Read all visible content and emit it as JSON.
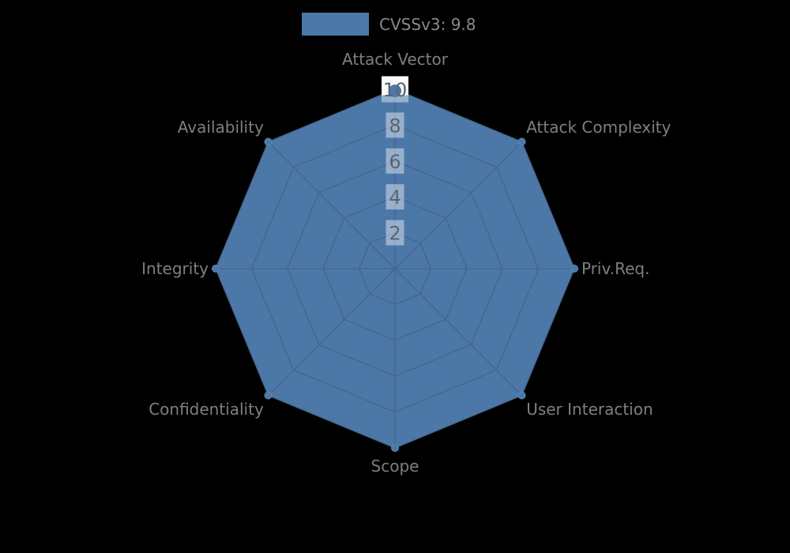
{
  "legend": {
    "label": "CVSSv3: 9.8",
    "position": "top-center"
  },
  "chart_data": {
    "type": "radar",
    "title": "",
    "categories": [
      "Attack Vector",
      "Attack Complexity",
      "Priv.Req.",
      "User Interaction",
      "Scope",
      "Confidentiality",
      "Integrity",
      "Availability"
    ],
    "series": [
      {
        "name": "CVSSv3: 9.8",
        "values": [
          10,
          10,
          10,
          10,
          10,
          10,
          10,
          10
        ]
      }
    ],
    "radial_ticks": [
      2,
      4,
      6,
      8,
      10
    ],
    "rmin": 0,
    "rmax": 10,
    "grid": true,
    "legend_position": "top-center",
    "colors": {
      "fill": "#4c78a8",
      "grid_line": "#47648c",
      "marker_edge": "#5d87b5",
      "background": "#000000",
      "axis_label": "#7f7f7f",
      "tick_label": "#5b6570",
      "tick_box": "rgba(255,255,255,0.42)",
      "tick_box_top": "#fafafa",
      "legend_text": "#8a8a8a"
    }
  }
}
